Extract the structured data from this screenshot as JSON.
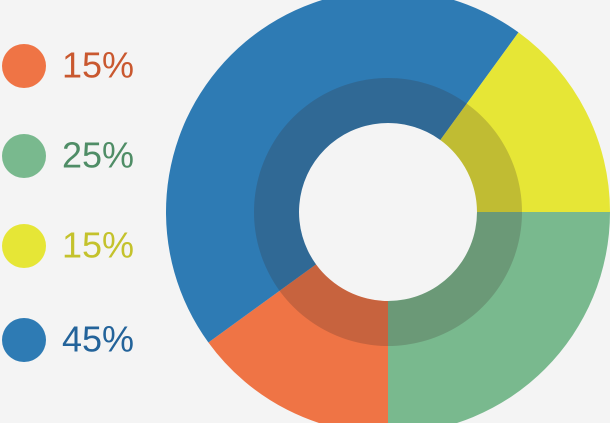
{
  "chart_data": {
    "type": "pie",
    "values": [
      15,
      25,
      15,
      45
    ],
    "value_labels": [
      "15%",
      "25%",
      "15%",
      "45%"
    ],
    "colors": [
      "#ef7445",
      "#79b98e",
      "#e6e636",
      "#2e7bb4"
    ],
    "label_colors": [
      "#c9582f",
      "#4f8d66",
      "#c4c22c",
      "#23639a"
    ]
  }
}
